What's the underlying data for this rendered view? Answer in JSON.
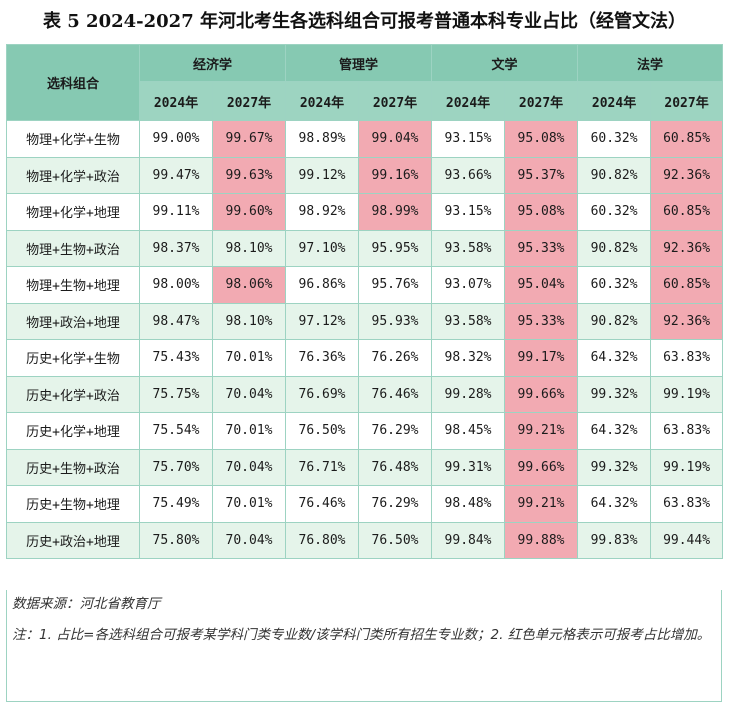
{
  "title": "表 5 2024-2027 年河北考生各选科组合可报考普通本科专业占比（经管文法）",
  "header": {
    "combo_label": "选科组合",
    "subjects": [
      "经济学",
      "管理学",
      "文学",
      "法学"
    ],
    "years": [
      "2024年",
      "2027年"
    ]
  },
  "rows": [
    {
      "combo": "物理+化学+生物",
      "values": [
        "99.00%",
        "99.67%",
        "98.89%",
        "99.04%",
        "93.15%",
        "95.08%",
        "60.32%",
        "60.85%"
      ],
      "highlight": [
        false,
        true,
        false,
        true,
        false,
        true,
        false,
        true
      ]
    },
    {
      "combo": "物理+化学+政治",
      "values": [
        "99.47%",
        "99.63%",
        "99.12%",
        "99.16%",
        "93.66%",
        "95.37%",
        "90.82%",
        "92.36%"
      ],
      "highlight": [
        false,
        true,
        false,
        true,
        false,
        true,
        false,
        true
      ]
    },
    {
      "combo": "物理+化学+地理",
      "values": [
        "99.11%",
        "99.60%",
        "98.92%",
        "98.99%",
        "93.15%",
        "95.08%",
        "60.32%",
        "60.85%"
      ],
      "highlight": [
        false,
        true,
        false,
        true,
        false,
        true,
        false,
        true
      ]
    },
    {
      "combo": "物理+生物+政治",
      "values": [
        "98.37%",
        "98.10%",
        "97.10%",
        "95.95%",
        "93.58%",
        "95.33%",
        "90.82%",
        "92.36%"
      ],
      "highlight": [
        false,
        false,
        false,
        false,
        false,
        true,
        false,
        true
      ]
    },
    {
      "combo": "物理+生物+地理",
      "values": [
        "98.00%",
        "98.06%",
        "96.86%",
        "95.76%",
        "93.07%",
        "95.04%",
        "60.32%",
        "60.85%"
      ],
      "highlight": [
        false,
        true,
        false,
        false,
        false,
        true,
        false,
        true
      ]
    },
    {
      "combo": "物理+政治+地理",
      "values": [
        "98.47%",
        "98.10%",
        "97.12%",
        "95.93%",
        "93.58%",
        "95.33%",
        "90.82%",
        "92.36%"
      ],
      "highlight": [
        false,
        false,
        false,
        false,
        false,
        true,
        false,
        true
      ]
    },
    {
      "combo": "历史+化学+生物",
      "values": [
        "75.43%",
        "70.01%",
        "76.36%",
        "76.26%",
        "98.32%",
        "99.17%",
        "64.32%",
        "63.83%"
      ],
      "highlight": [
        false,
        false,
        false,
        false,
        false,
        true,
        false,
        false
      ]
    },
    {
      "combo": "历史+化学+政治",
      "values": [
        "75.75%",
        "70.04%",
        "76.69%",
        "76.46%",
        "99.28%",
        "99.66%",
        "99.32%",
        "99.19%"
      ],
      "highlight": [
        false,
        false,
        false,
        false,
        false,
        true,
        false,
        false
      ]
    },
    {
      "combo": "历史+化学+地理",
      "values": [
        "75.54%",
        "70.01%",
        "76.50%",
        "76.29%",
        "98.45%",
        "99.21%",
        "64.32%",
        "63.83%"
      ],
      "highlight": [
        false,
        false,
        false,
        false,
        false,
        true,
        false,
        false
      ]
    },
    {
      "combo": "历史+生物+政治",
      "values": [
        "75.70%",
        "70.04%",
        "76.71%",
        "76.48%",
        "99.31%",
        "99.66%",
        "99.32%",
        "99.19%"
      ],
      "highlight": [
        false,
        false,
        false,
        false,
        false,
        true,
        false,
        false
      ]
    },
    {
      "combo": "历史+生物+地理",
      "values": [
        "75.49%",
        "70.01%",
        "76.46%",
        "76.29%",
        "98.48%",
        "99.21%",
        "64.32%",
        "63.83%"
      ],
      "highlight": [
        false,
        false,
        false,
        false,
        false,
        true,
        false,
        false
      ]
    },
    {
      "combo": "历史+政治+地理",
      "values": [
        "75.80%",
        "70.04%",
        "76.80%",
        "76.50%",
        "99.84%",
        "99.88%",
        "99.83%",
        "99.44%"
      ],
      "highlight": [
        false,
        false,
        false,
        false,
        false,
        true,
        false,
        false
      ]
    }
  ],
  "notes": {
    "source": "数据来源：河北省教育厅",
    "note": "注：1. 占比=各选科组合可报考某学科门类专业数/该学科门类所有招生专业数；2. 红色单元格表示可报考占比增加。"
  },
  "colors": {
    "header_dark": "#86c9b2",
    "header_light": "#9dd4c1",
    "row_alt": "#e5f4ea",
    "highlight_red": "#f2aab2"
  }
}
